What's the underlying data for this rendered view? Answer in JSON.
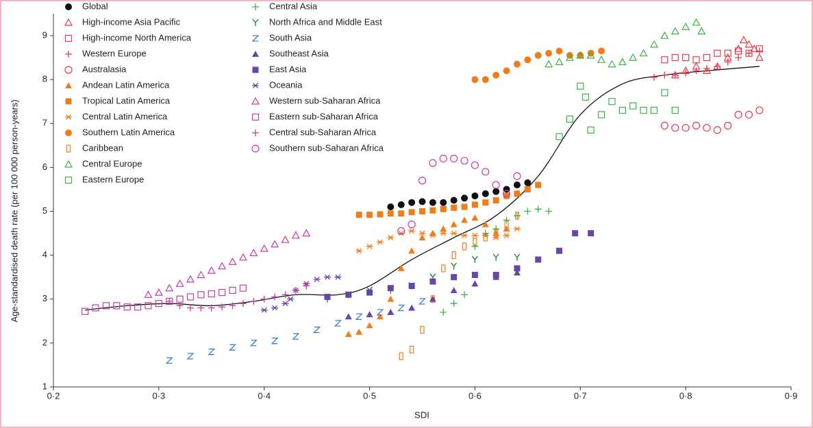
{
  "chart_data": {
    "type": "scatter",
    "x_label": "SDI",
    "y_label": "Age-standardised death rate (per 100 000 person-years)",
    "xlim": [
      0.2,
      0.9
    ],
    "xticks": [
      {
        "value": 0.2,
        "label": "0·2"
      },
      {
        "value": 0.3,
        "label": "0·3"
      },
      {
        "value": 0.4,
        "label": "0·4"
      },
      {
        "value": 0.5,
        "label": "0·5"
      },
      {
        "value": 0.6,
        "label": "0·6"
      },
      {
        "value": 0.7,
        "label": "0·7"
      },
      {
        "value": 0.8,
        "label": "0·8"
      },
      {
        "value": 0.9,
        "label": "0·9"
      }
    ],
    "ylim": [
      1,
      9.5
    ],
    "yticks": [
      1,
      2,
      3,
      4,
      5,
      6,
      7,
      8,
      9
    ],
    "curve": {
      "color": "#111111",
      "x": [
        0.23,
        0.27,
        0.31,
        0.35,
        0.39,
        0.43,
        0.47,
        0.5,
        0.54,
        0.58,
        0.62,
        0.66,
        0.7,
        0.74,
        0.78,
        0.82,
        0.87
      ],
      "values": [
        2.75,
        2.85,
        2.9,
        2.85,
        2.95,
        3.1,
        3.1,
        3.3,
        3.9,
        4.4,
        4.9,
        5.8,
        7.2,
        7.9,
        8.1,
        8.2,
        8.3
      ]
    },
    "series": [
      {
        "name": "Global",
        "color": "#111111",
        "marker": "circle-filled",
        "x": [
          0.52,
          0.53,
          0.54,
          0.55,
          0.56,
          0.57,
          0.58,
          0.59,
          0.6,
          0.61,
          0.62,
          0.63,
          0.64,
          0.65
        ],
        "values": [
          5.1,
          5.15,
          5.2,
          5.22,
          5.2,
          5.2,
          5.25,
          5.3,
          5.35,
          5.4,
          5.45,
          5.5,
          5.6,
          5.65
        ]
      },
      {
        "name": "High-income Asia Pacific",
        "color": "#e8384f",
        "marker": "triangle-open",
        "x": [
          0.79,
          0.8,
          0.81,
          0.82,
          0.83,
          0.84,
          0.85,
          0.855,
          0.86,
          0.865,
          0.87
        ],
        "values": [
          8.1,
          8.2,
          8.3,
          8.2,
          8.3,
          8.5,
          8.7,
          8.9,
          8.8,
          8.7,
          8.5
        ]
      },
      {
        "name": "High-income North America",
        "color": "#e8384f",
        "marker": "square-open",
        "x": [
          0.78,
          0.79,
          0.8,
          0.81,
          0.82,
          0.83,
          0.84,
          0.85,
          0.86,
          0.87
        ],
        "values": [
          8.45,
          8.5,
          8.5,
          8.45,
          8.5,
          8.6,
          8.6,
          8.65,
          8.6,
          8.7
        ]
      },
      {
        "name": "Western Europe",
        "color": "#e8384f",
        "marker": "plus",
        "x": [
          0.77,
          0.78,
          0.79,
          0.8,
          0.81,
          0.82,
          0.83,
          0.84,
          0.85,
          0.86,
          0.87
        ],
        "values": [
          8.05,
          8.1,
          8.1,
          8.15,
          8.2,
          8.25,
          8.3,
          8.4,
          8.5,
          8.6,
          8.65
        ]
      },
      {
        "name": "Australasia",
        "color": "#e8384f",
        "marker": "circle-open",
        "x": [
          0.78,
          0.79,
          0.8,
          0.81,
          0.82,
          0.83,
          0.84,
          0.85,
          0.86,
          0.87
        ],
        "values": [
          6.95,
          6.9,
          6.9,
          6.95,
          6.9,
          6.85,
          6.95,
          7.2,
          7.2,
          7.3
        ]
      },
      {
        "name": "Andean Latin America",
        "color": "#f07d1a",
        "marker": "triangle-filled",
        "x": [
          0.48,
          0.49,
          0.5,
          0.51,
          0.52,
          0.53,
          0.54,
          0.55,
          0.56,
          0.57,
          0.58,
          0.59,
          0.6,
          0.61,
          0.62,
          0.63
        ],
        "values": [
          2.2,
          2.25,
          2.4,
          2.6,
          3.0,
          3.7,
          4.1,
          4.4,
          4.5,
          4.6,
          4.7,
          4.8,
          4.85,
          4.7,
          4.5,
          4.6
        ]
      },
      {
        "name": "Tropical Latin America",
        "color": "#f07d1a",
        "marker": "square-filled",
        "x": [
          0.49,
          0.5,
          0.51,
          0.52,
          0.53,
          0.54,
          0.55,
          0.56,
          0.57,
          0.58,
          0.59,
          0.6,
          0.61,
          0.62,
          0.63,
          0.64,
          0.65,
          0.66
        ],
        "values": [
          4.92,
          4.92,
          4.93,
          4.95,
          4.95,
          4.98,
          5.0,
          5.02,
          5.05,
          5.08,
          5.1,
          5.15,
          5.2,
          5.25,
          5.35,
          5.4,
          5.5,
          5.6
        ]
      },
      {
        "name": "Central Latin America",
        "color": "#f07d1a",
        "marker": "asterisk",
        "x": [
          0.49,
          0.5,
          0.51,
          0.52,
          0.53,
          0.54,
          0.55,
          0.56,
          0.57,
          0.58,
          0.59,
          0.6,
          0.61,
          0.62,
          0.63,
          0.64
        ],
        "values": [
          4.1,
          4.2,
          4.3,
          4.4,
          4.5,
          4.55,
          4.5,
          4.45,
          4.5,
          4.5,
          4.45,
          4.45,
          4.45,
          4.4,
          4.45,
          4.6
        ]
      },
      {
        "name": "Southern Latin America",
        "color": "#f07d1a",
        "marker": "circle-filled",
        "x": [
          0.6,
          0.61,
          0.62,
          0.63,
          0.64,
          0.65,
          0.66,
          0.67,
          0.68,
          0.69,
          0.7,
          0.71,
          0.72
        ],
        "values": [
          8.0,
          8.0,
          8.1,
          8.2,
          8.35,
          8.45,
          8.55,
          8.6,
          8.65,
          8.55,
          8.55,
          8.6,
          8.65
        ]
      },
      {
        "name": "Caribbean",
        "color": "#f07d1a",
        "marker": "bar-open",
        "x": [
          0.53,
          0.54,
          0.55,
          0.56,
          0.57,
          0.58,
          0.59,
          0.6,
          0.61,
          0.62,
          0.63,
          0.64
        ],
        "values": [
          1.7,
          1.85,
          2.3,
          3.0,
          3.7,
          4.0,
          4.2,
          4.3,
          4.4,
          4.5,
          4.7,
          4.9
        ]
      },
      {
        "name": "Central Europe",
        "color": "#3cb043",
        "marker": "triangle-open",
        "x": [
          0.67,
          0.68,
          0.69,
          0.7,
          0.71,
          0.72,
          0.73,
          0.74,
          0.75,
          0.76,
          0.77,
          0.78,
          0.79,
          0.8,
          0.81,
          0.815
        ],
        "values": [
          8.35,
          8.4,
          8.5,
          8.55,
          8.55,
          8.45,
          8.35,
          8.4,
          8.5,
          8.6,
          8.8,
          9.0,
          9.1,
          9.2,
          9.3,
          9.1
        ]
      },
      {
        "name": "Eastern Europe",
        "color": "#3cb043",
        "marker": "square-open",
        "x": [
          0.68,
          0.69,
          0.7,
          0.705,
          0.71,
          0.72,
          0.73,
          0.74,
          0.75,
          0.76,
          0.77,
          0.78,
          0.79
        ],
        "values": [
          6.7,
          7.1,
          7.85,
          7.6,
          6.85,
          7.2,
          7.5,
          7.3,
          7.4,
          7.3,
          7.3,
          7.7,
          7.3
        ]
      },
      {
        "name": "Central Asia",
        "color": "#3cb043",
        "marker": "plus",
        "x": [
          0.57,
          0.58,
          0.59,
          0.6,
          0.61,
          0.62,
          0.63,
          0.64,
          0.65,
          0.66,
          0.67
        ],
        "values": [
          2.7,
          2.9,
          3.1,
          4.2,
          4.5,
          4.6,
          4.8,
          4.9,
          5.0,
          5.05,
          5.0
        ]
      },
      {
        "name": "North Africa and Middle East",
        "color": "#1f7a3a",
        "marker": "y",
        "x": [
          0.46,
          0.48,
          0.5,
          0.52,
          0.54,
          0.56,
          0.58,
          0.6,
          0.62,
          0.64
        ],
        "values": [
          3.0,
          3.1,
          3.2,
          3.2,
          3.3,
          3.5,
          3.75,
          3.9,
          3.95,
          3.95
        ]
      },
      {
        "name": "South Asia",
        "color": "#3a7dc8",
        "marker": "z",
        "x": [
          0.31,
          0.33,
          0.35,
          0.37,
          0.39,
          0.41,
          0.43,
          0.45,
          0.47,
          0.49,
          0.51,
          0.53,
          0.55
        ],
        "values": [
          1.6,
          1.7,
          1.8,
          1.9,
          2.0,
          2.05,
          2.15,
          2.3,
          2.45,
          2.6,
          2.7,
          2.8,
          2.95
        ]
      },
      {
        "name": "Southeast Asia",
        "color": "#6a45a8",
        "marker": "triangle-filled",
        "x": [
          0.48,
          0.5,
          0.52,
          0.54,
          0.56,
          0.58,
          0.6,
          0.62,
          0.64
        ],
        "values": [
          2.6,
          2.65,
          2.7,
          2.8,
          3.0,
          3.2,
          3.35,
          3.5,
          3.6
        ]
      },
      {
        "name": "East Asia",
        "color": "#6a45a8",
        "marker": "square-filled",
        "x": [
          0.46,
          0.48,
          0.5,
          0.52,
          0.54,
          0.56,
          0.58,
          0.6,
          0.62,
          0.64,
          0.66,
          0.68,
          0.695,
          0.71
        ],
        "values": [
          3.05,
          3.1,
          3.15,
          3.25,
          3.3,
          3.4,
          3.5,
          3.55,
          3.55,
          3.7,
          3.9,
          4.1,
          4.5,
          4.5
        ]
      },
      {
        "name": "Oceania",
        "color": "#6a45a8",
        "marker": "asterisk",
        "x": [
          0.4,
          0.41,
          0.42,
          0.425,
          0.43,
          0.44,
          0.45,
          0.46,
          0.47
        ],
        "values": [
          2.75,
          2.8,
          2.9,
          3.0,
          3.2,
          3.35,
          3.45,
          3.5,
          3.5
        ]
      },
      {
        "name": "Western sub-Saharan Africa",
        "color": "#c83aa0",
        "marker": "triangle-open",
        "x": [
          0.29,
          0.3,
          0.31,
          0.32,
          0.33,
          0.34,
          0.35,
          0.36,
          0.37,
          0.38,
          0.39,
          0.4,
          0.41,
          0.42,
          0.43,
          0.44
        ],
        "values": [
          3.1,
          3.15,
          3.25,
          3.35,
          3.45,
          3.55,
          3.65,
          3.75,
          3.85,
          3.95,
          4.05,
          4.15,
          4.25,
          4.35,
          4.45,
          4.5
        ]
      },
      {
        "name": "Eastern sub-Saharan Africa",
        "color": "#c83aa0",
        "marker": "square-open",
        "x": [
          0.23,
          0.24,
          0.25,
          0.26,
          0.27,
          0.28,
          0.29,
          0.3,
          0.31,
          0.32,
          0.33,
          0.34,
          0.35,
          0.36,
          0.37,
          0.38
        ],
        "values": [
          2.72,
          2.8,
          2.85,
          2.85,
          2.82,
          2.82,
          2.85,
          2.9,
          2.95,
          3.0,
          3.05,
          3.1,
          3.12,
          3.15,
          3.2,
          3.25
        ]
      },
      {
        "name": "Central sub-Saharan Africa",
        "color": "#c83aa0",
        "marker": "plus",
        "x": [
          0.31,
          0.32,
          0.33,
          0.34,
          0.35,
          0.36,
          0.37,
          0.38,
          0.39,
          0.4,
          0.41,
          0.42,
          0.43,
          0.44
        ],
        "values": [
          2.95,
          2.85,
          2.8,
          2.8,
          2.8,
          2.82,
          2.85,
          2.9,
          2.95,
          3.0,
          3.05,
          3.1,
          3.2,
          3.3
        ]
      },
      {
        "name": "Southern sub-Saharan Africa",
        "color": "#c83aa0",
        "marker": "circle-open",
        "x": [
          0.53,
          0.54,
          0.55,
          0.56,
          0.57,
          0.58,
          0.59,
          0.6,
          0.61,
          0.62,
          0.63,
          0.64
        ],
        "values": [
          4.55,
          4.7,
          5.7,
          6.1,
          6.2,
          6.2,
          6.15,
          6.05,
          5.9,
          5.6,
          5.4,
          5.8
        ]
      }
    ]
  }
}
